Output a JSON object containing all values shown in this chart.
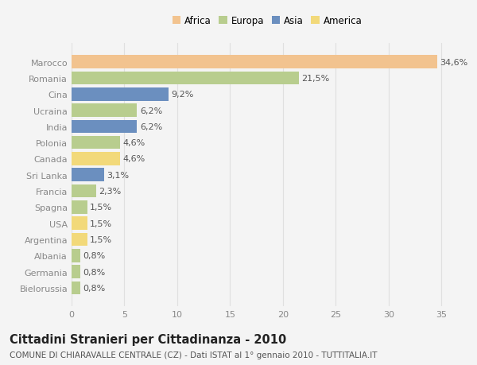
{
  "categories": [
    "Marocco",
    "Romania",
    "Cina",
    "Ucraina",
    "India",
    "Polonia",
    "Canada",
    "Sri Lanka",
    "Francia",
    "Spagna",
    "USA",
    "Argentina",
    "Albania",
    "Germania",
    "Bielorussia"
  ],
  "values": [
    34.6,
    21.5,
    9.2,
    6.2,
    6.2,
    4.6,
    4.6,
    3.1,
    2.3,
    1.5,
    1.5,
    1.5,
    0.8,
    0.8,
    0.8
  ],
  "labels": [
    "34,6%",
    "21,5%",
    "9,2%",
    "6,2%",
    "6,2%",
    "4,6%",
    "4,6%",
    "3,1%",
    "2,3%",
    "1,5%",
    "1,5%",
    "1,5%",
    "0,8%",
    "0,8%",
    "0,8%"
  ],
  "bar_colors": [
    "#f2c38f",
    "#b8cd8e",
    "#6b8fbf",
    "#b8cd8e",
    "#6b8fbf",
    "#b8cd8e",
    "#f2d97a",
    "#6b8fbf",
    "#b8cd8e",
    "#b8cd8e",
    "#f2d97a",
    "#f2d97a",
    "#b8cd8e",
    "#b8cd8e",
    "#b8cd8e"
  ],
  "continent_labels": [
    "Africa",
    "Europa",
    "Asia",
    "America"
  ],
  "continent_colors": [
    "#f2c38f",
    "#b8cd8e",
    "#6b8fbf",
    "#f2d97a"
  ],
  "title": "Cittadini Stranieri per Cittadinanza - 2010",
  "subtitle": "COMUNE DI CHIARAVALLE CENTRALE (CZ) - Dati ISTAT al 1° gennaio 2010 - TUTTITALIA.IT",
  "xlim": [
    0,
    37
  ],
  "xticks": [
    0,
    5,
    10,
    15,
    20,
    25,
    30,
    35
  ],
  "background_color": "#f4f4f4",
  "plot_bg_color": "#f4f4f4",
  "grid_color": "#e0e0e0",
  "label_fontsize": 8,
  "tick_fontsize": 8,
  "title_fontsize": 10.5,
  "subtitle_fontsize": 7.5,
  "bar_height": 0.82
}
